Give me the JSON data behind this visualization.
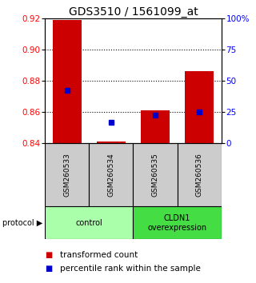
{
  "title": "GDS3510 / 1561099_at",
  "samples": [
    "GSM260533",
    "GSM260534",
    "GSM260535",
    "GSM260536"
  ],
  "red_values": [
    0.919,
    0.841,
    0.861,
    0.886
  ],
  "blue_values": [
    0.874,
    0.853,
    0.858,
    0.86
  ],
  "ymin": 0.84,
  "ymax": 0.92,
  "yticks_left": [
    0.84,
    0.86,
    0.88,
    0.9,
    0.92
  ],
  "yticks_right": [
    0,
    25,
    50,
    75,
    100
  ],
  "ytick_right_labels": [
    "0",
    "25",
    "50",
    "75",
    "100%"
  ],
  "dotted_lines": [
    0.86,
    0.88,
    0.9
  ],
  "groups": [
    {
      "label": "control",
      "cols": [
        0,
        1
      ],
      "color": "#aaffaa"
    },
    {
      "label": "CLDN1\noverexpression",
      "cols": [
        2,
        3
      ],
      "color": "#44dd44"
    }
  ],
  "gray_color": "#cccccc",
  "bar_color": "#cc0000",
  "blue_color": "#0000cc",
  "title_fontsize": 10,
  "tick_fontsize": 7.5,
  "sample_fontsize": 6.5,
  "proto_fontsize": 8,
  "legend_fontsize": 7.5
}
